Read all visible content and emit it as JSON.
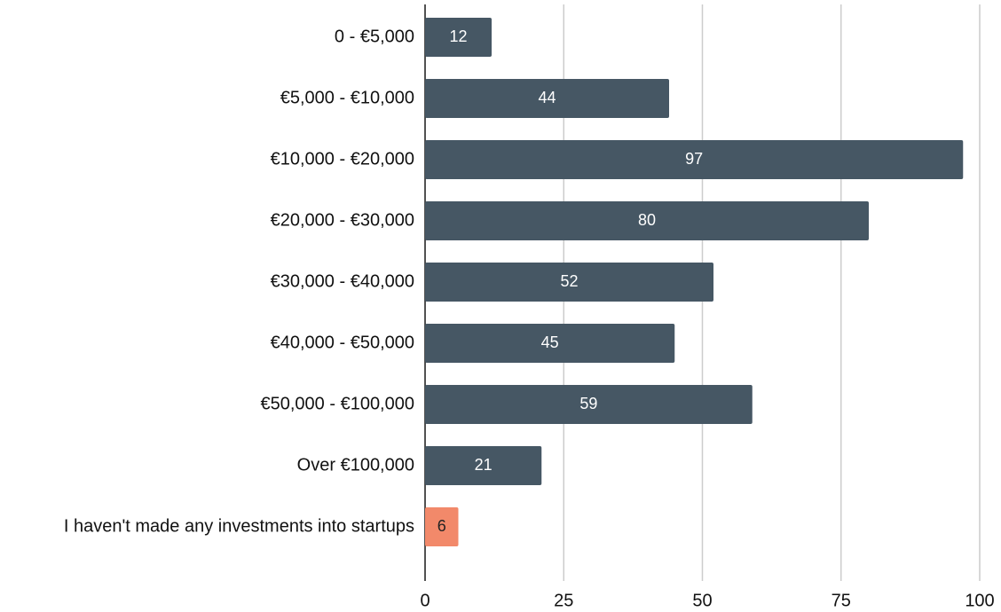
{
  "chart_data": {
    "type": "bar",
    "orientation": "horizontal",
    "categories": [
      "0 - €5,000",
      "€5,000 - €10,000",
      "€10,000 - €20,000",
      "€20,000 - €30,000",
      "€30,000 - €40,000",
      "€40,000 - €50,000",
      "€50,000 - €100,000",
      "Over €100,000",
      "I haven't made any investments into startups"
    ],
    "values": [
      12,
      44,
      97,
      80,
      52,
      45,
      59,
      21,
      6
    ],
    "colors": [
      "#465764",
      "#465764",
      "#465764",
      "#465764",
      "#465764",
      "#465764",
      "#465764",
      "#465764",
      "#f2896a"
    ],
    "xlim": [
      0,
      100
    ],
    "xticks": [
      0,
      25,
      50,
      75,
      100
    ],
    "grid": true
  }
}
